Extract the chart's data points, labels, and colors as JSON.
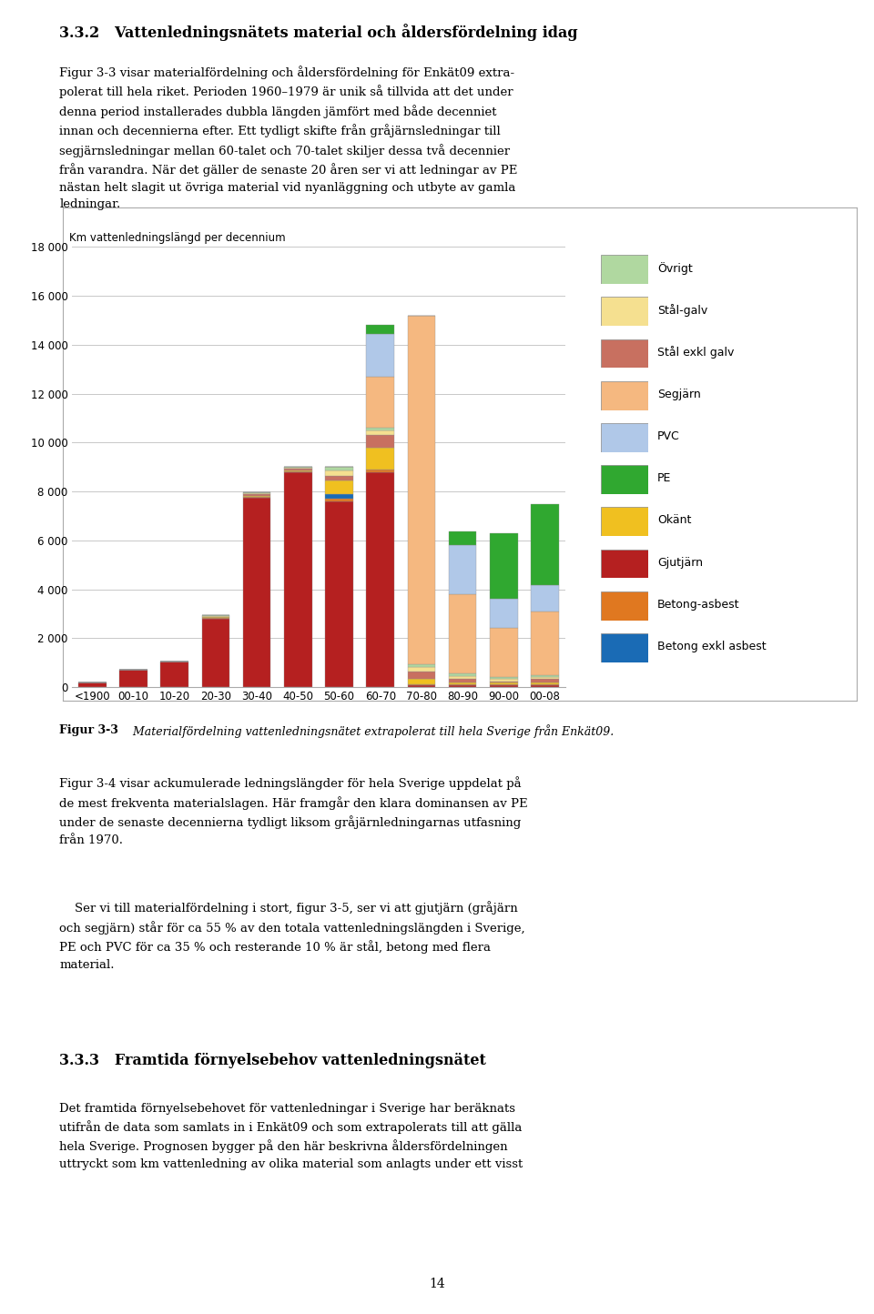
{
  "page_width": 9.6,
  "page_height": 14.44,
  "dpi": 100,
  "categories": [
    "<1900",
    "00-10",
    "10-20",
    "20-30",
    "30-40",
    "40-50",
    "50-60",
    "60-70",
    "70-80",
    "80-90",
    "90-00",
    "00-08"
  ],
  "stack_order": [
    "Gjutjärn",
    "Betong-asbest",
    "Betong exkl asbest",
    "Okänt",
    "Stål exkl galv",
    "Stål-galv",
    "Övrigt",
    "Segjärn",
    "PVC",
    "PE"
  ],
  "legend_order": [
    "Övrigt",
    "Stål-galv",
    "Stål exkl galv",
    "Segjärn",
    "PVC",
    "PE",
    "Okänt",
    "Gjutjärn",
    "Betong-asbest",
    "Betong exkl asbest"
  ],
  "colors": {
    "Gjutjärn": "#b52020",
    "Betong-asbest": "#e07820",
    "Betong exkl asbest": "#1a6bb5",
    "Okänt": "#f0c020",
    "Stål exkl galv": "#c87060",
    "Stål-galv": "#f5e090",
    "Övrigt": "#b0d8a0",
    "Segjärn": "#f5b880",
    "PVC": "#b0c8e8",
    "PE": "#30a830"
  },
  "bar_data": {
    "Gjutjärn": [
      200,
      700,
      1050,
      2800,
      7750,
      8800,
      7600,
      8800,
      100,
      100,
      100,
      100
    ],
    "Betong-asbest": [
      0,
      0,
      0,
      30,
      30,
      30,
      100,
      100,
      30,
      30,
      30,
      30
    ],
    "Betong exkl asbest": [
      0,
      0,
      0,
      0,
      0,
      0,
      200,
      0,
      0,
      0,
      0,
      0
    ],
    "Okänt": [
      0,
      0,
      0,
      30,
      50,
      50,
      550,
      900,
      300,
      100,
      50,
      50
    ],
    "Stål exkl galv": [
      0,
      0,
      0,
      30,
      50,
      50,
      200,
      500,
      400,
      150,
      50,
      150
    ],
    "Stål-galv": [
      0,
      0,
      0,
      30,
      50,
      50,
      200,
      200,
      250,
      100,
      100,
      80
    ],
    "Övrigt": [
      0,
      0,
      0,
      30,
      50,
      50,
      150,
      100,
      150,
      100,
      80,
      80
    ],
    "Segjärn": [
      0,
      0,
      0,
      0,
      0,
      0,
      0,
      2000,
      14850,
      3300,
      2000,
      2700
    ],
    "PVC": [
      0,
      0,
      0,
      0,
      0,
      0,
      0,
      2000,
      0,
      2100,
      1300,
      1100
    ],
    "PE": [
      0,
      0,
      0,
      0,
      0,
      0,
      0,
      400,
      0,
      600,
      2700,
      3300
    ]
  },
  "chart_ylabel": "Km vattenledningslängd per decennium",
  "ylim": [
    0,
    18000
  ],
  "yticks": [
    0,
    2000,
    4000,
    6000,
    8000,
    10000,
    12000,
    14000,
    16000,
    18000
  ],
  "ytick_labels": [
    "0",
    "2 000",
    "4 000",
    "6 000",
    "8 000",
    "10 000",
    "12 000",
    "14 000",
    "16 000",
    "18 000"
  ],
  "grid_color": "#c8c8c8",
  "heading": "3.3.2   Vattenledningsnätets material och åldersfördelning idag",
  "para1": "Figur 3-3 visar materialfördelning och åldersfördelning för Enkät09 extra-\npolerat till hela riket. Perioden 1960–1979 är unik så tillvida att det under\ndenna period installerades dubbla längden jämfört med både decenniet\ninnan och decennierna efter. Ett tydligt skifte från gråjärnsledningar till\nsegjärnsledningar mellan 60-talet och 70-talet skiljer dessa två decennier\nfrån varandra. När det gäller de senaste 20 åren ser vi att ledningar av PE\nnästan helt slagit ut övriga material vid nyanläggning och utbyte av gamla\nledningar.",
  "fig_caption_bold": "Figur 3-3",
  "fig_caption_rest": "   Materialfördelning vattenledningsnätet extrapolerat till hela Sverige från Enkät09.",
  "para2": "Figur 3-4 visar ackumulerade ledningslängder för hela Sverige uppdelat på\nde mest frekventa materialslagen. Här framgår den klara dominansen av PE\nunder de senaste decennierna tydligt liksom gråjärnledningarnas utfasning\nfrån 1970.",
  "para3": "    Ser vi till materialfördelning i stort, figur 3-5, ser vi att gjutjärn (gråjärn\noch segjärn) står för ca 55 % av den totala vattenledningslängden i Sverige,\nPE och PVC för ca 35 % och resterande 10 % är stål, betong med flera\nmaterial.",
  "heading2": "3.3.3   Framtida förnyelsebehov vattenledningsnätet",
  "para4": "Det framtida förnyelsebehovet för vattenledningar i Sverige har beräknats\nutifrån de data som samlats in i Enkät09 och som extrapolerats till att gälla\nhela Sverige. Prognosen bygger på den här beskrivna åldersfördelningen\nuttryckt som km vattenledning av olika material som anlagts under ett visst",
  "page_number": "14"
}
